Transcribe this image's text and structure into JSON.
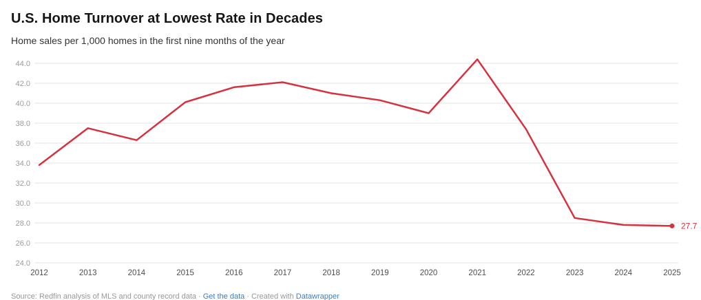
{
  "header": {
    "title": "U.S. Home Turnover at Lowest Rate in Decades",
    "subtitle": "Home sales per 1,000 homes in the first nine months of the year"
  },
  "chart_data": {
    "type": "line",
    "title": "U.S. Home Turnover at Lowest Rate in Decades",
    "subtitle": "Home sales per 1,000 homes in the first nine months of the year",
    "x": [
      "2012",
      "2013",
      "2014",
      "2015",
      "2016",
      "2017",
      "2018",
      "2019",
      "2020",
      "2021",
      "2022",
      "2023",
      "2024",
      "2025"
    ],
    "series": [
      {
        "name": "Home sales per 1,000 homes",
        "values": [
          33.8,
          37.5,
          36.3,
          40.1,
          41.6,
          42.1,
          41.0,
          40.3,
          39.0,
          44.4,
          37.4,
          28.5,
          27.8,
          27.7
        ]
      }
    ],
    "ylim": [
      24,
      44
    ],
    "yticks": [
      44,
      42,
      40,
      38,
      36,
      34,
      32,
      30,
      28,
      26,
      24
    ],
    "ytick_decimals": 1,
    "xlabel": "",
    "ylabel": "",
    "grid": "horizontal",
    "legend": "none",
    "end_label": "27.7"
  },
  "style": {
    "line_color": "#d5323f",
    "grid_color": "#e3e3e3",
    "ytick_color": "#9a9a9a",
    "xtick_color": "#4d4d4d",
    "link_color": "#3e7cbf"
  },
  "footer": {
    "source_text": "Source: Redfin analysis of MLS and county record data",
    "separator": "·",
    "get_data_label": "Get the data",
    "created_with_text": "Created with",
    "datawrapper_label": "Datawrapper"
  }
}
